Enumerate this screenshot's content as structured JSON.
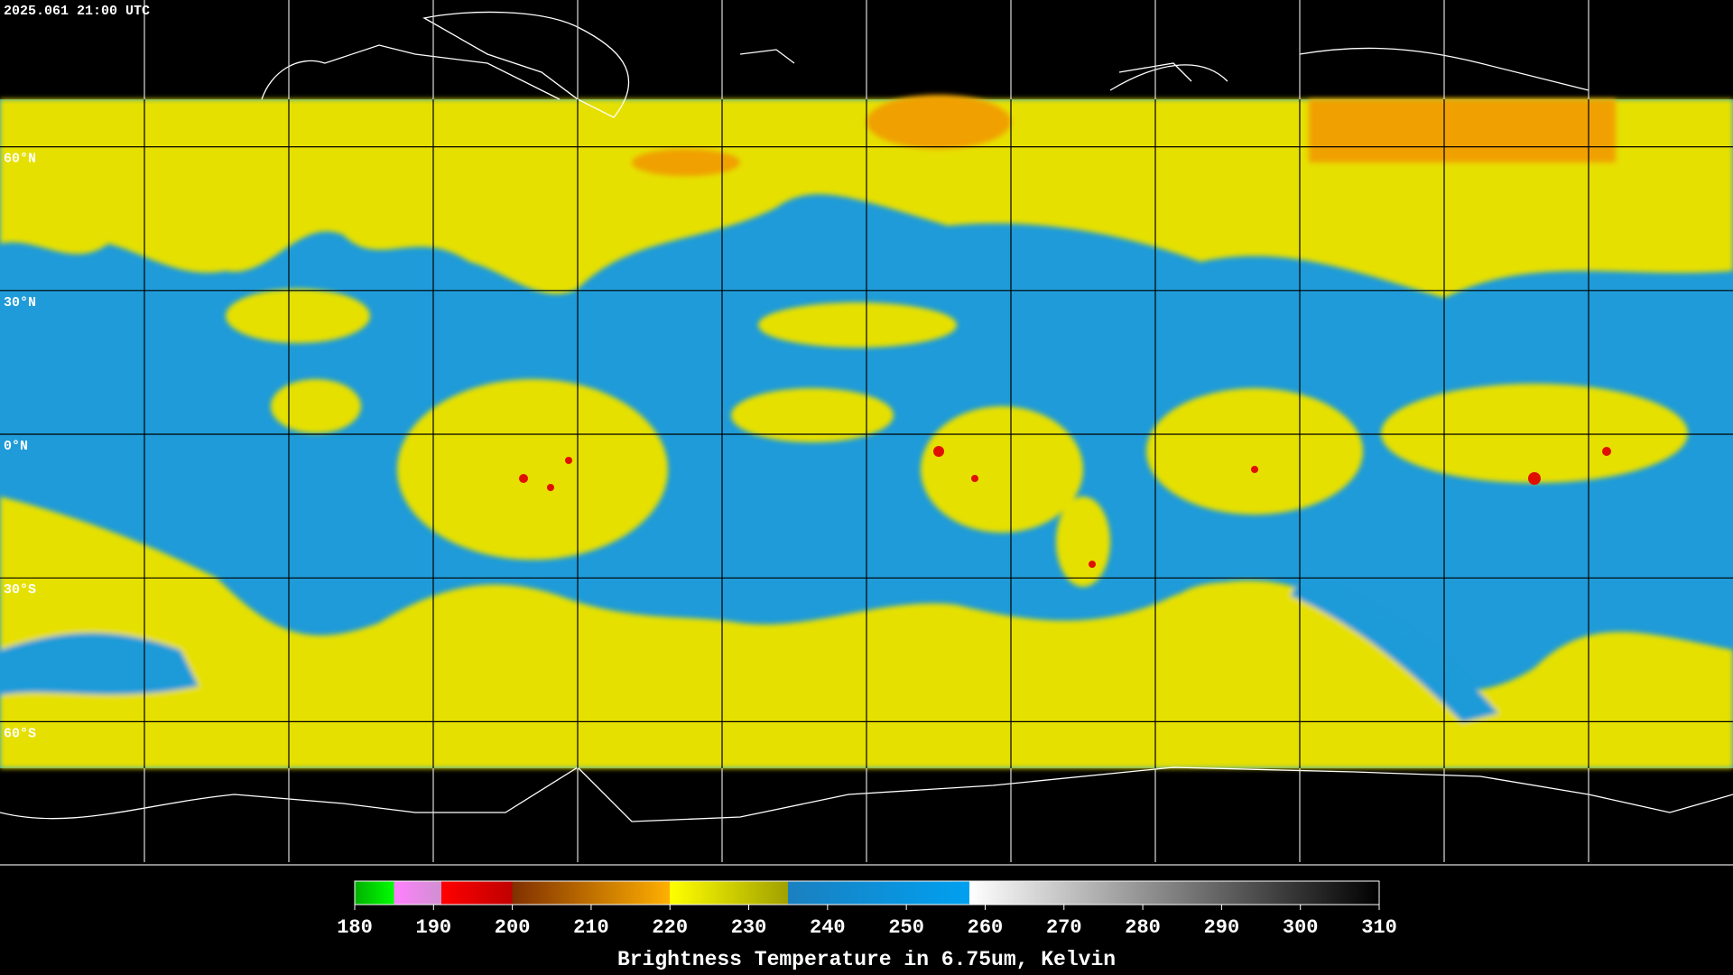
{
  "header": {
    "timestamp": "2025.061 21:00 UTC"
  },
  "map": {
    "lat_labels": [
      "60°N",
      "30°N",
      "0°N",
      "30°S",
      "60°S"
    ]
  },
  "colorbar": {
    "label": "Brightness Temperature in 6.75um, Kelvin",
    "range": [
      180,
      310
    ],
    "ticks": [
      180,
      190,
      200,
      210,
      220,
      230,
      240,
      250,
      260,
      270,
      280,
      290,
      300,
      310
    ],
    "stops": [
      {
        "value": 180,
        "color": "#00b000"
      },
      {
        "value": 185,
        "color": "#00ff00"
      },
      {
        "value": 185,
        "color": "#ff80ff"
      },
      {
        "value": 191,
        "color": "#d090d0"
      },
      {
        "value": 191,
        "color": "#ff0000"
      },
      {
        "value": 200,
        "color": "#c00000"
      },
      {
        "value": 200,
        "color": "#803000"
      },
      {
        "value": 220,
        "color": "#ffb000"
      },
      {
        "value": 220,
        "color": "#ffff00"
      },
      {
        "value": 235,
        "color": "#a0a000"
      },
      {
        "value": 235,
        "color": "#1a80c0"
      },
      {
        "value": 258,
        "color": "#00a0f0"
      },
      {
        "value": 258,
        "color": "#ffffff"
      },
      {
        "value": 310,
        "color": "#000000"
      }
    ]
  }
}
